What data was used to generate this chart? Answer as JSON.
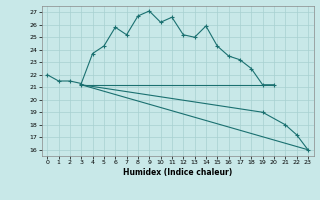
{
  "title": "",
  "xlabel": "Humidex (Indice chaleur)",
  "bg_color": "#c8e8e8",
  "grid_color": "#a8d0d0",
  "line_color": "#1a7070",
  "xlim": [
    -0.5,
    23.5
  ],
  "ylim": [
    15.5,
    27.5
  ],
  "xticks": [
    0,
    1,
    2,
    3,
    4,
    5,
    6,
    7,
    8,
    9,
    10,
    11,
    12,
    13,
    14,
    15,
    16,
    17,
    18,
    19,
    20,
    21,
    22,
    23
  ],
  "yticks": [
    16,
    17,
    18,
    19,
    20,
    21,
    22,
    23,
    24,
    25,
    26,
    27
  ],
  "line1_x": [
    0,
    1,
    2,
    3,
    4,
    5,
    6,
    7,
    8,
    9,
    10,
    11,
    12,
    13,
    14,
    15,
    16,
    17,
    18,
    19,
    20
  ],
  "line1_y": [
    22.0,
    21.5,
    21.5,
    21.3,
    23.7,
    24.3,
    25.8,
    25.2,
    26.7,
    27.1,
    26.2,
    26.6,
    25.2,
    25.0,
    25.9,
    24.3,
    23.5,
    23.2,
    22.5,
    21.2,
    21.2
  ],
  "line2_x": [
    3,
    20
  ],
  "line2_y": [
    21.2,
    21.2
  ],
  "line3_x": [
    3,
    19,
    21,
    22,
    23
  ],
  "line3_y": [
    21.2,
    19.0,
    18.0,
    17.2,
    16.0
  ],
  "line4_x": [
    3,
    23
  ],
  "line4_y": [
    21.2,
    16.0
  ]
}
